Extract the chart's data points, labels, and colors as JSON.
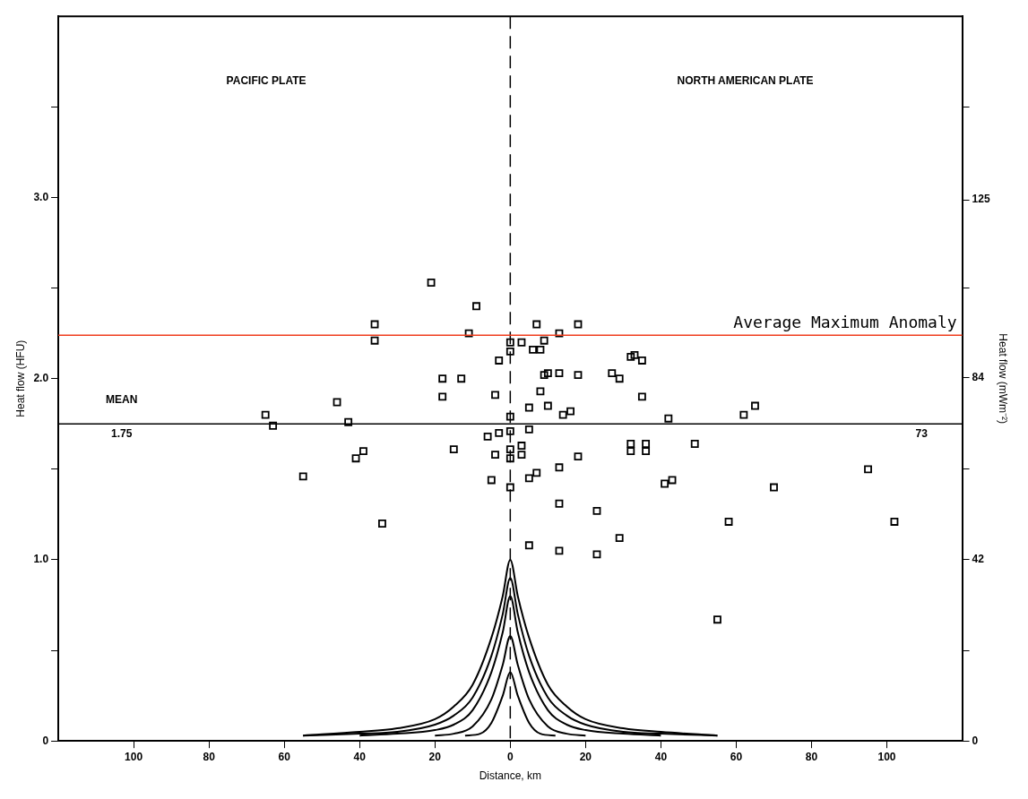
{
  "chart_data": {
    "type": "scatter",
    "xlabel": "Distance, km",
    "ylabel": "Heat flow (HFU)",
    "y2label": "Heat flow (mWm⁻²)",
    "xlim": [
      -120,
      120
    ],
    "xticks": [
      {
        "value": -100,
        "label": "100"
      },
      {
        "value": -80,
        "label": "80"
      },
      {
        "value": -60,
        "label": "60"
      },
      {
        "value": -40,
        "label": "40"
      },
      {
        "value": -20,
        "label": "20"
      },
      0,
      20,
      40,
      60,
      80,
      100
    ],
    "ylim": [
      0,
      4
    ],
    "yticks": [
      {
        "value": 0,
        "label": "0"
      },
      {
        "value": 0.5,
        "label": null
      },
      {
        "value": 1,
        "label": "1.0"
      },
      {
        "value": 1.5,
        "label": null
      },
      {
        "value": 2,
        "label": "2.0"
      },
      {
        "value": 2.5,
        "label": null
      },
      {
        "value": 3,
        "label": "3.0"
      },
      {
        "value": 3.5,
        "label": null
      }
    ],
    "y2lim": [
      0,
      167.4
    ],
    "y2ticks": [
      0,
      {
        "value": 20.9,
        "label": null
      },
      42,
      {
        "value": 62.8,
        "label": null
      },
      84,
      {
        "value": 104.6,
        "label": null
      },
      125,
      {
        "value": 146.4,
        "label": null
      }
    ],
    "grid": false,
    "legend": false,
    "series": [
      {
        "color": "#000000",
        "marker": "square",
        "x": [
          -21,
          -9,
          -36,
          -11,
          -36,
          -3,
          -18,
          -13,
          -4,
          -18,
          -46,
          -65,
          -63,
          -43,
          -6,
          -3,
          -15,
          -39,
          -41,
          -4,
          -55,
          -5,
          -34,
          7,
          18,
          13,
          0,
          3,
          9,
          0,
          6,
          8,
          32,
          33,
          35,
          9,
          10,
          13,
          18,
          27,
          29,
          8,
          35,
          5,
          10,
          14,
          16,
          0,
          42,
          62,
          65,
          0,
          5,
          3,
          0,
          3,
          0,
          32,
          36,
          32,
          36,
          49,
          18,
          13,
          7,
          5,
          0,
          41,
          43,
          70,
          95,
          13,
          23,
          29,
          58,
          102,
          5,
          13,
          23,
          55
        ],
        "values": [
          2.53,
          2.4,
          2.3,
          2.25,
          2.21,
          2.1,
          2.0,
          2.0,
          1.91,
          1.9,
          1.87,
          1.8,
          1.74,
          1.76,
          1.68,
          1.7,
          1.61,
          1.6,
          1.56,
          1.58,
          1.46,
          1.44,
          1.2,
          2.3,
          2.3,
          2.25,
          2.2,
          2.2,
          2.21,
          2.15,
          2.16,
          2.16,
          2.12,
          2.13,
          2.1,
          2.02,
          2.03,
          2.03,
          2.02,
          2.03,
          2.0,
          1.93,
          1.9,
          1.84,
          1.85,
          1.8,
          1.82,
          1.79,
          1.78,
          1.8,
          1.85,
          1.71,
          1.72,
          1.63,
          1.61,
          1.58,
          1.56,
          1.64,
          1.64,
          1.6,
          1.6,
          1.64,
          1.57,
          1.51,
          1.48,
          1.45,
          1.4,
          1.42,
          1.44,
          1.4,
          1.5,
          1.31,
          1.27,
          1.12,
          1.21,
          1.21,
          1.08,
          1.05,
          1.03,
          0.67
        ]
      },
      {
        "type": "line",
        "color": "#000000",
        "marker": "none",
        "x": [
          -55,
          -40,
          -30,
          -20,
          -15,
          -10,
          -5,
          -2,
          0,
          2,
          5,
          10,
          15,
          20,
          30,
          40,
          55
        ],
        "values": [
          0.03,
          0.05,
          0.07,
          0.12,
          0.19,
          0.31,
          0.57,
          0.8,
          1.0,
          0.8,
          0.57,
          0.31,
          0.19,
          0.12,
          0.07,
          0.05,
          0.03
        ]
      },
      {
        "type": "line",
        "color": "#000000",
        "marker": "none",
        "x": [
          -55,
          -40,
          -30,
          -20,
          -15,
          -10,
          -5,
          -2,
          0,
          2,
          5,
          10,
          15,
          20,
          30,
          40,
          55
        ],
        "values": [
          0.03,
          0.04,
          0.05,
          0.09,
          0.14,
          0.24,
          0.47,
          0.7,
          0.9,
          0.7,
          0.47,
          0.24,
          0.14,
          0.09,
          0.05,
          0.04,
          0.03
        ]
      },
      {
        "type": "line",
        "color": "#000000",
        "marker": "none",
        "x": [
          -40,
          -30,
          -20,
          -15,
          -10,
          -5,
          -2,
          0,
          2,
          5,
          10,
          15,
          20,
          30,
          40
        ],
        "values": [
          0.03,
          0.04,
          0.06,
          0.09,
          0.17,
          0.38,
          0.6,
          0.8,
          0.6,
          0.38,
          0.17,
          0.09,
          0.06,
          0.04,
          0.03
        ]
      },
      {
        "type": "line",
        "color": "#000000",
        "marker": "none",
        "x": [
          -20,
          -15,
          -10,
          -5,
          -2,
          0,
          2,
          5,
          10,
          15,
          20
        ],
        "values": [
          0.03,
          0.04,
          0.08,
          0.23,
          0.42,
          0.58,
          0.42,
          0.23,
          0.08,
          0.04,
          0.03
        ]
      },
      {
        "type": "line",
        "color": "#000000",
        "marker": "none",
        "x": [
          -12,
          -8,
          -5,
          -2,
          0,
          2,
          5,
          8,
          12
        ],
        "values": [
          0.03,
          0.04,
          0.1,
          0.25,
          0.38,
          0.25,
          0.1,
          0.04,
          0.03
        ]
      }
    ],
    "ref_lines": [
      {
        "axis": "x",
        "value": 0,
        "color": "#000000",
        "line_style": "dashed"
      },
      {
        "axis": "y",
        "value": 1.75,
        "color": "#000000",
        "line_style": "solid"
      },
      {
        "axis": "y",
        "value": 2.24,
        "color": "#f03c1c",
        "line_style": "solid",
        "label": "Average Maximum Anomaly"
      }
    ],
    "annotations": [
      "PACIFIC PLATE",
      "NORTH AMERICAN PLATE",
      "MEAN",
      "1.75",
      "73"
    ]
  }
}
